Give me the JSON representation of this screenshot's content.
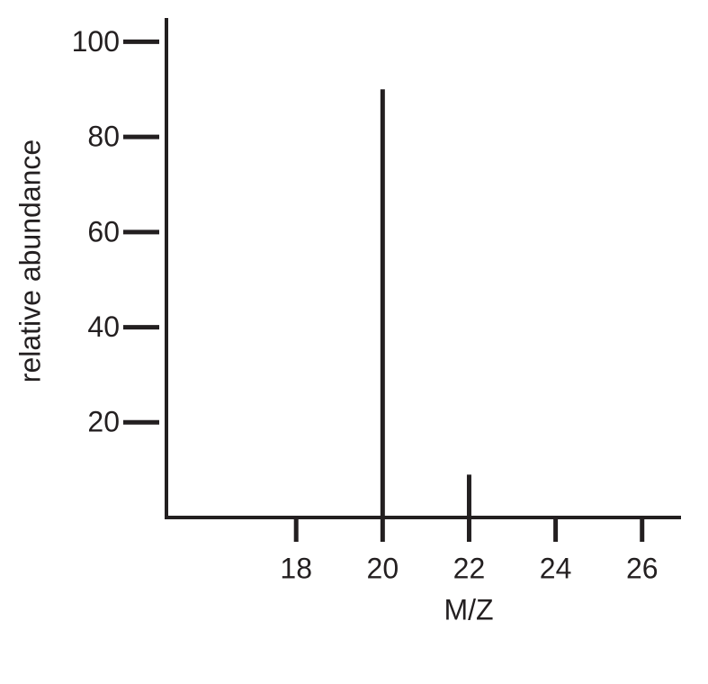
{
  "chart_data": {
    "type": "bar",
    "x_label": "M/Z",
    "y_label": "relative abundance",
    "x": [
      20,
      22
    ],
    "values": [
      90,
      9
    ],
    "color": "#231f20",
    "xlim": [
      15,
      26.9
    ],
    "xticks": [
      18,
      20,
      22,
      24,
      26
    ],
    "ylim": [
      0,
      105
    ],
    "yticks": [
      20,
      40,
      60,
      80,
      100
    ]
  }
}
